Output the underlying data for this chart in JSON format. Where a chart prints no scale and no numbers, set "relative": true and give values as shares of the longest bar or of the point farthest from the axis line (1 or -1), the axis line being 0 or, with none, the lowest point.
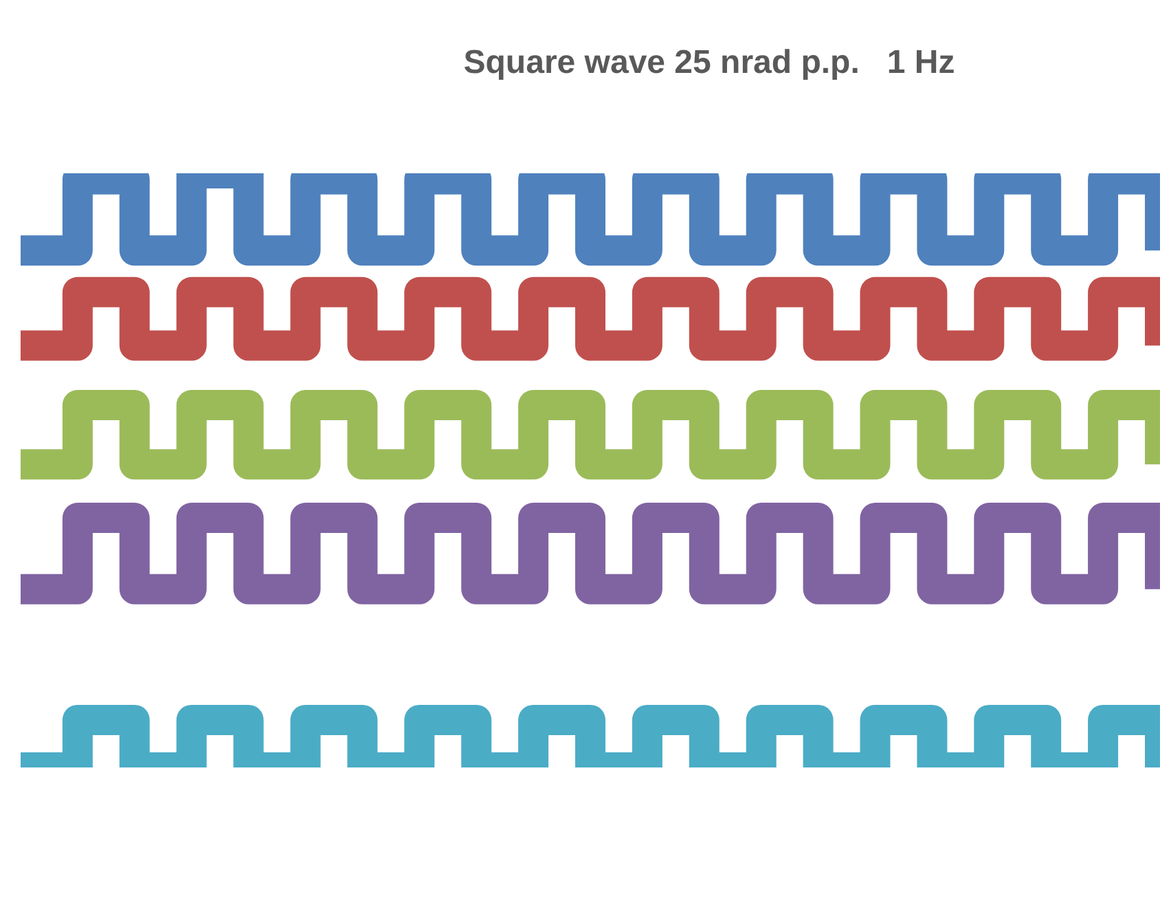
{
  "chart_data": {
    "type": "step",
    "title": "Square wave 25 nrad p.p.   1 Hz",
    "relative": true,
    "categories": [
      null,
      null,
      null,
      null,
      null,
      null,
      null,
      null,
      null,
      null,
      null,
      null,
      null,
      null,
      null,
      null,
      null,
      null,
      null,
      null,
      null
    ],
    "series": [
      {
        "color": "#4f81bd",
        "values": [
          0.87,
          0.99,
          0.87,
          1,
          0.87,
          0.99,
          0.87,
          0.99,
          0.87,
          0.99,
          0.87,
          0.99,
          0.87,
          0.99,
          0.87,
          0.99,
          0.87,
          0.99,
          0.87,
          0.99,
          0.87
        ]
      },
      {
        "color": "#c0504d",
        "values": [
          0.71,
          0.8,
          0.71,
          0.8,
          0.71,
          0.8,
          0.71,
          0.8,
          0.71,
          0.8,
          0.71,
          0.8,
          0.71,
          0.8,
          0.71,
          0.8,
          0.71,
          0.8,
          0.71,
          0.8,
          0.71
        ]
      },
      {
        "color": "#9bbb59",
        "values": [
          0.51,
          0.61,
          0.51,
          0.61,
          0.51,
          0.61,
          0.51,
          0.61,
          0.51,
          0.61,
          0.51,
          0.61,
          0.51,
          0.61,
          0.51,
          0.61,
          0.51,
          0.61,
          0.51,
          0.61,
          0.51
        ]
      },
      {
        "color": "#8064a2",
        "values": [
          0.3,
          0.42,
          0.3,
          0.42,
          0.3,
          0.42,
          0.3,
          0.42,
          0.3,
          0.42,
          0.3,
          0.42,
          0.3,
          0.42,
          0.3,
          0.42,
          0.3,
          0.42,
          0.3,
          0.42,
          0.3
        ]
      },
      {
        "color": "#4bacc6",
        "values": [
          0,
          0.08,
          0,
          0.08,
          0,
          0.08,
          0,
          0.08,
          0,
          0.08,
          0,
          0.08,
          0,
          0.08,
          0,
          0.08,
          0,
          0.08,
          0,
          0.08,
          0
        ]
      }
    ]
  }
}
